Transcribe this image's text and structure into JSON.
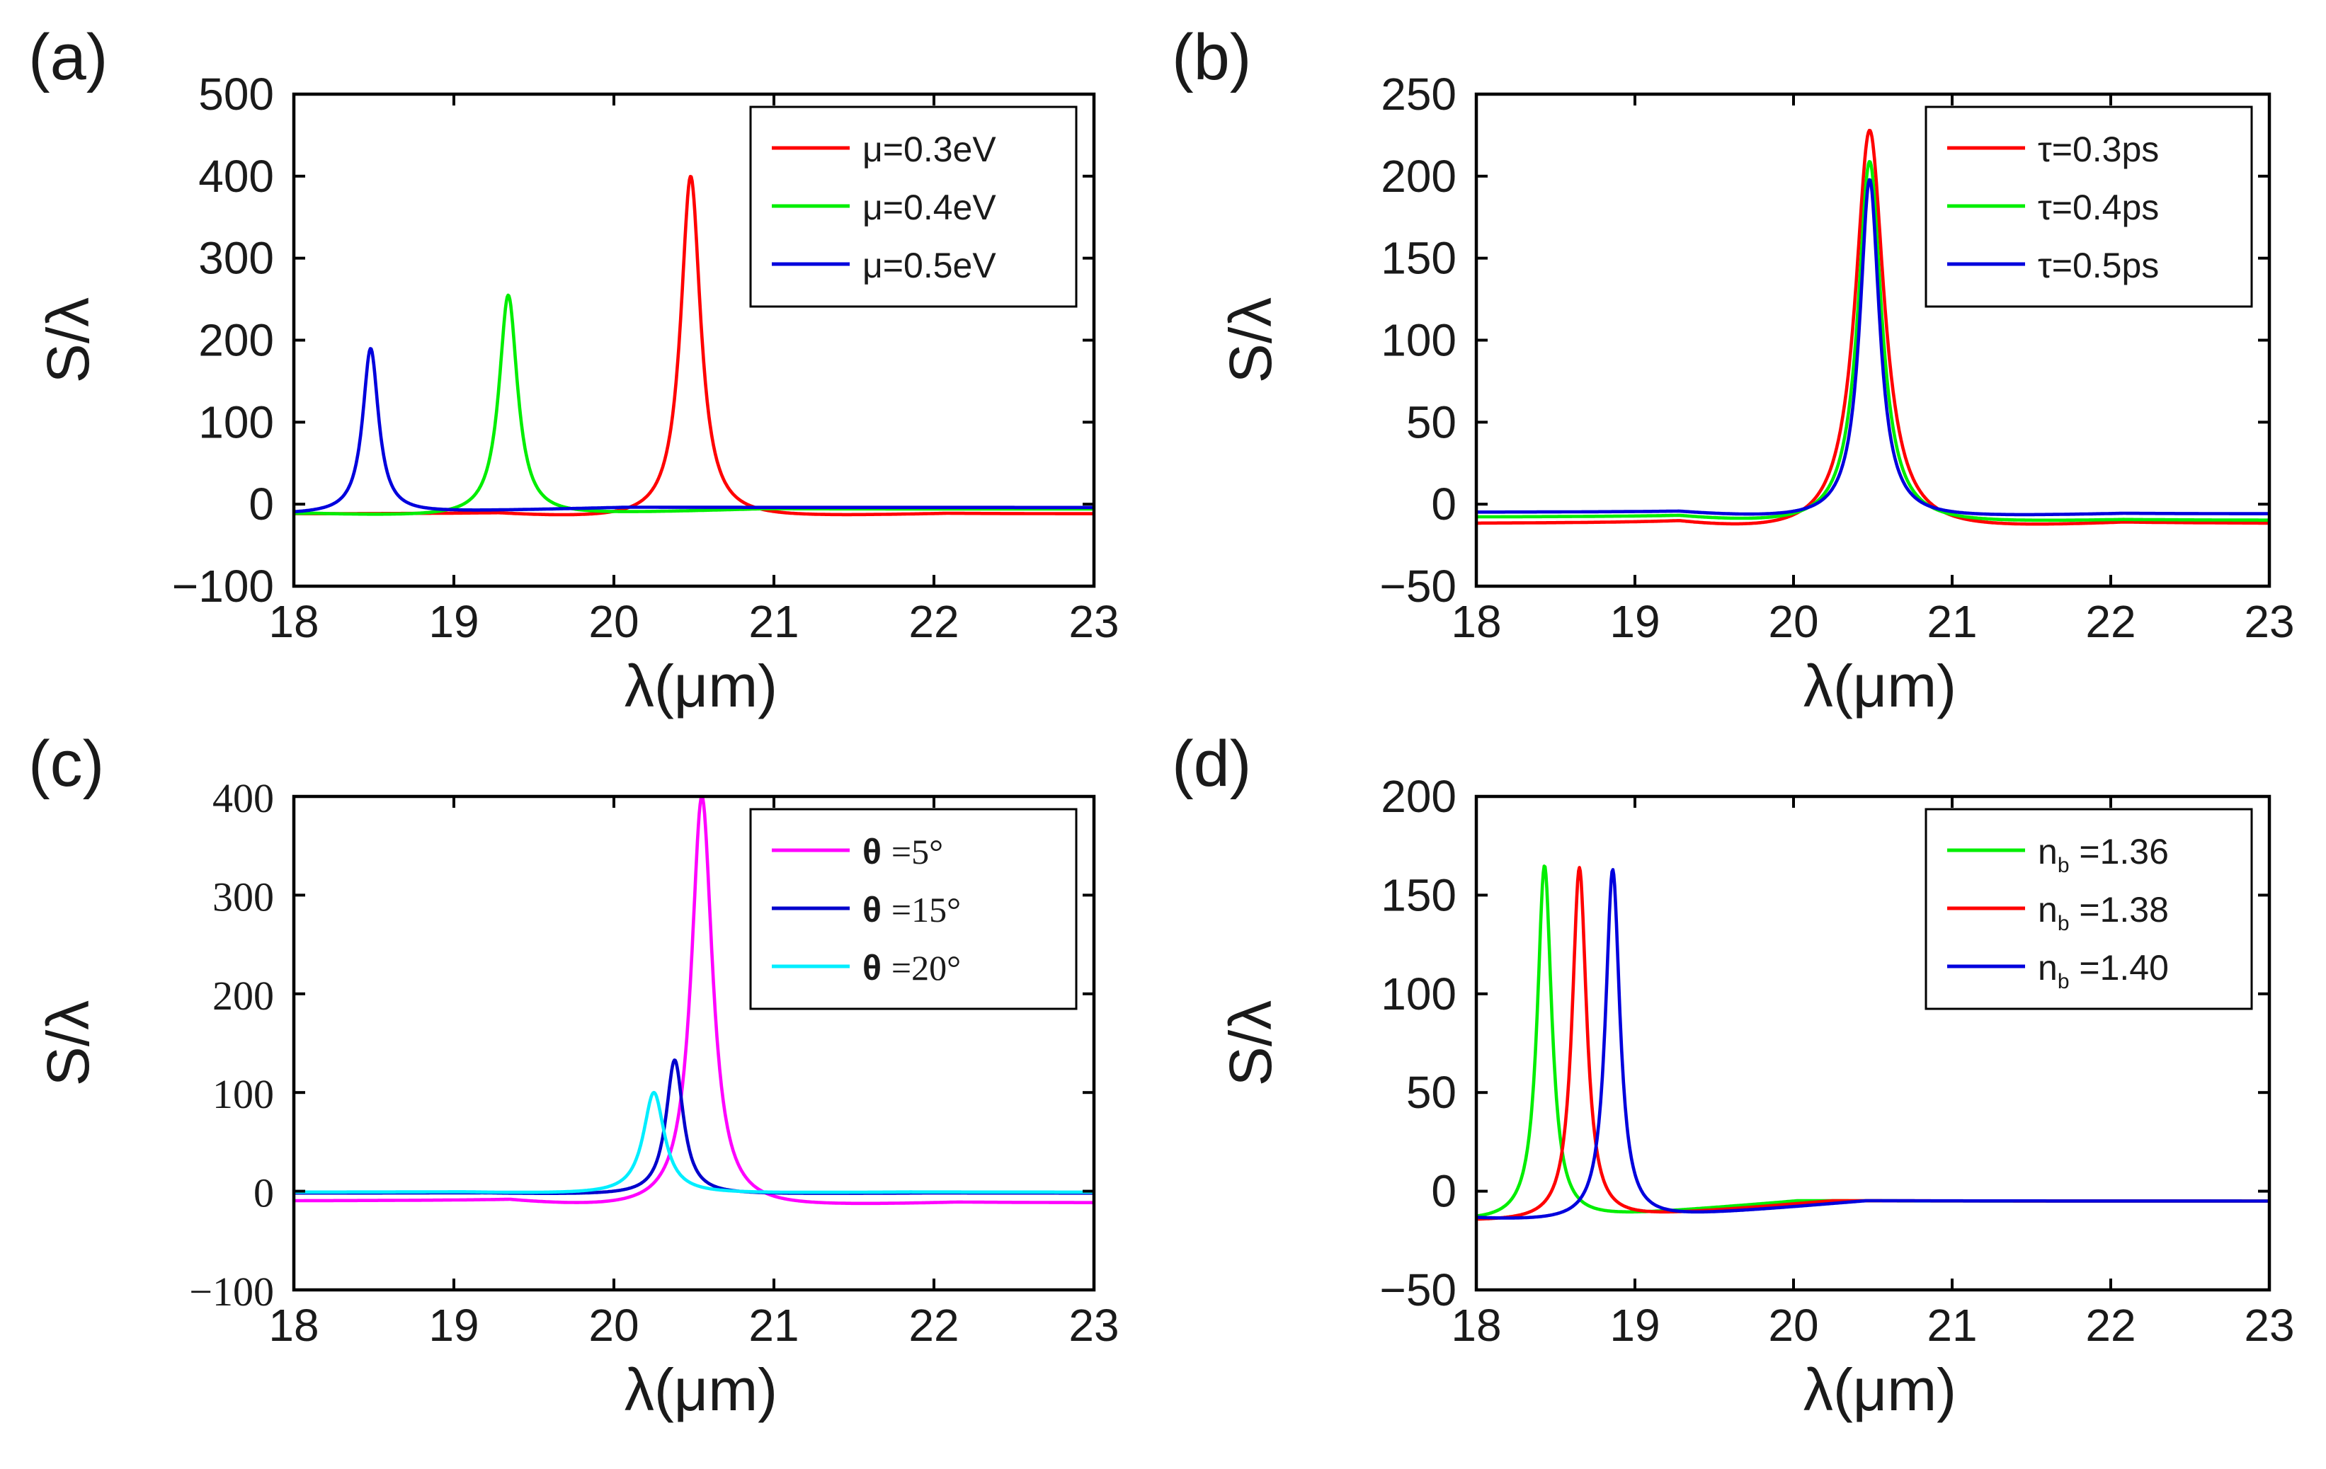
{
  "chart_data": [
    {
      "panel": "(a)",
      "type": "line",
      "xlabel": "λ(μm)",
      "ylabel": "S/λ",
      "xlim": [
        18,
        23
      ],
      "ylim": [
        -100,
        500
      ],
      "xticks": [
        "18",
        "19",
        "20",
        "21",
        "22",
        "23"
      ],
      "yticks": [
        "−100",
        "0",
        "100",
        "200",
        "300",
        "400",
        "500"
      ],
      "tick_font": "sans",
      "legend": "top-right",
      "series": [
        {
          "name": "μ=0.3eV",
          "color": "#ff0000",
          "peak_x": 20.48,
          "peak_y": 400,
          "hwhm": 0.075,
          "base_left": -12,
          "base_mid": -20,
          "base_right": -12,
          "dip_side": "both"
        },
        {
          "name": "μ=0.4eV",
          "color": "#00ee00",
          "peak_x": 19.34,
          "peak_y": 255,
          "hwhm": 0.07,
          "base_left": -12,
          "base_mid": -16,
          "base_right": -6,
          "dip_side": "both"
        },
        {
          "name": "μ=0.5eV",
          "color": "#0000dd",
          "peak_x": 18.48,
          "peak_y": 190,
          "hwhm": 0.06,
          "base_left": -14,
          "base_mid": -12,
          "base_right": -4,
          "dip_side": "both"
        }
      ]
    },
    {
      "panel": "(b)",
      "type": "line",
      "xlabel": "λ(μm)",
      "ylabel": "S/λ",
      "xlim": [
        18,
        23
      ],
      "ylim": [
        -50,
        250
      ],
      "xticks": [
        "18",
        "19",
        "20",
        "21",
        "22",
        "23"
      ],
      "yticks": [
        "−50",
        "0",
        "50",
        "100",
        "150",
        "200",
        "250"
      ],
      "tick_font": "sans",
      "legend": "top-right",
      "series": [
        {
          "name": "τ=0.3ps",
          "color": "#ff0000",
          "peak_x": 20.48,
          "peak_y": 228,
          "hwhm": 0.11,
          "base_left": -12,
          "base_mid": -20,
          "base_right": -12,
          "dip_side": "both"
        },
        {
          "name": "τ=0.4ps",
          "color": "#00ee00",
          "peak_x": 20.48,
          "peak_y": 209,
          "hwhm": 0.09,
          "base_left": -8,
          "base_mid": -14,
          "base_right": -10,
          "dip_side": "both"
        },
        {
          "name": "τ=0.5ps",
          "color": "#0000dd",
          "peak_x": 20.48,
          "peak_y": 198,
          "hwhm": 0.075,
          "base_left": -5,
          "base_mid": -10,
          "base_right": -6,
          "dip_side": "both"
        }
      ]
    },
    {
      "panel": "(c)",
      "type": "line",
      "xlabel": "λ(μm)",
      "ylabel": "S/λ",
      "xlim": [
        18,
        23
      ],
      "ylim": [
        -100,
        400
      ],
      "xticks": [
        "18",
        "19",
        "20",
        "21",
        "22",
        "23"
      ],
      "yticks": [
        "−100",
        "0",
        "100",
        "200",
        "300",
        "400"
      ],
      "tick_font": "serif",
      "legend": "top-right",
      "series": [
        {
          "name": "θ=5°",
          "symbol": "θ",
          "value": "=5°",
          "color": "#ff00ff",
          "peak_x": 20.55,
          "peak_y": 400,
          "hwhm": 0.08,
          "base_left": -10,
          "base_mid": -20,
          "base_right": -12,
          "dip_side": "both"
        },
        {
          "name": "θ=15°",
          "symbol": "θ",
          "value": "=15°",
          "color": "#0000cc",
          "peak_x": 20.38,
          "peak_y": 133,
          "hwhm": 0.065,
          "base_left": -2,
          "base_mid": -4,
          "base_right": -2,
          "dip_side": "both"
        },
        {
          "name": "θ=20°",
          "symbol": "θ",
          "value": "=20°",
          "color": "#00eeff",
          "peak_x": 20.25,
          "peak_y": 100,
          "hwhm": 0.08,
          "base_left": -1,
          "base_mid": -3,
          "base_right": -1,
          "dip_side": "both"
        }
      ]
    },
    {
      "panel": "(d)",
      "type": "line",
      "xlabel": "λ(μm)",
      "ylabel": "S/λ",
      "xlim": [
        18,
        23
      ],
      "ylim": [
        -50,
        200
      ],
      "xticks": [
        "18",
        "19",
        "20",
        "21",
        "22",
        "23"
      ],
      "yticks": [
        "−50",
        "0",
        "50",
        "100",
        "150",
        "200"
      ],
      "tick_font": "sans",
      "legend": "top-right",
      "series": [
        {
          "name": "n_b=1.36",
          "symbol": "n",
          "sub": "b",
          "value": "=1.36",
          "color": "#00ee00",
          "peak_x": 18.43,
          "peak_y": 165,
          "hwhm": 0.055,
          "base_left": -12,
          "base_mid": -16,
          "base_right": -5,
          "dip_side": "both"
        },
        {
          "name": "n_b=1.38",
          "symbol": "n",
          "sub": "b",
          "value": "=1.38",
          "color": "#ff0000",
          "peak_x": 18.65,
          "peak_y": 164,
          "hwhm": 0.055,
          "base_left": -14,
          "base_mid": -16,
          "base_right": -5,
          "dip_side": "both"
        },
        {
          "name": "n_b=1.40",
          "symbol": "n",
          "sub": "b",
          "value": "=1.40",
          "color": "#0000dd",
          "peak_x": 18.86,
          "peak_y": 163,
          "hwhm": 0.055,
          "base_left": -12,
          "base_mid": -16,
          "base_right": -5,
          "dip_side": "both"
        }
      ]
    }
  ]
}
